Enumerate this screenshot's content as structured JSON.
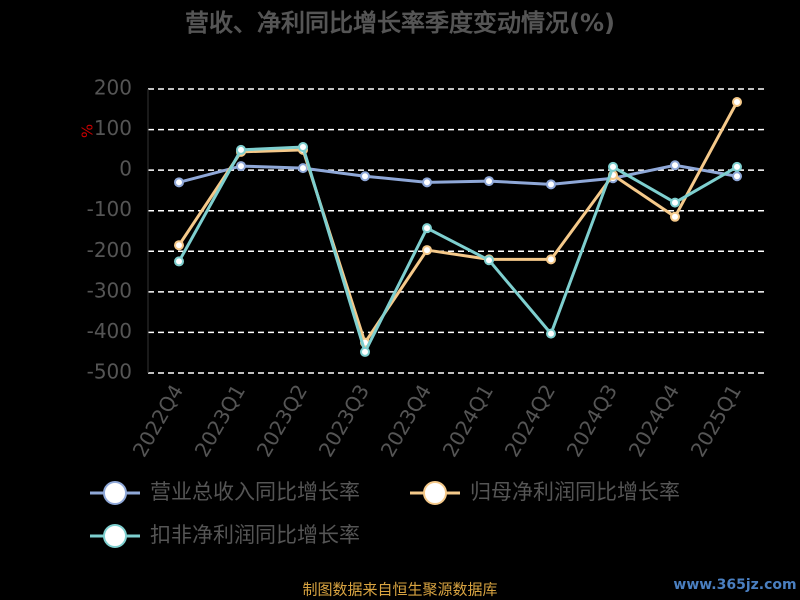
{
  "chart_data": {
    "type": "line",
    "title": "营收、净利同比增长率季度变动情况(%)",
    "y_label": "%",
    "categories": [
      "2022Q4",
      "2023Q1",
      "2023Q2",
      "2023Q3",
      "2023Q4",
      "2024Q1",
      "2024Q2",
      "2024Q3",
      "2024Q4",
      "2025Q1"
    ],
    "series": [
      {
        "name": "营业总收入同比增长率",
        "color": "#8fa8d8",
        "values": [
          -30,
          10,
          5,
          -15,
          -30,
          -27,
          -35,
          -20,
          12,
          -15
        ]
      },
      {
        "name": "归母净利润同比增长率",
        "color": "#f5c98a",
        "values": [
          -185,
          45,
          50,
          -425,
          -197,
          -220,
          -220,
          -12,
          -115,
          168
        ]
      },
      {
        "name": "扣非净利润同比增长率",
        "color": "#7ecfcf",
        "values": [
          -225,
          50,
          57,
          -448,
          -143,
          -222,
          -403,
          8,
          -80,
          8
        ]
      }
    ],
    "ylim": [
      -500,
      200
    ],
    "yticks": [
      -500,
      -400,
      -300,
      -200,
      -100,
      0,
      100,
      200
    ],
    "grid": true,
    "source": "制图数据来自恒生聚源数据库",
    "watermark": "www.365jz.com"
  }
}
